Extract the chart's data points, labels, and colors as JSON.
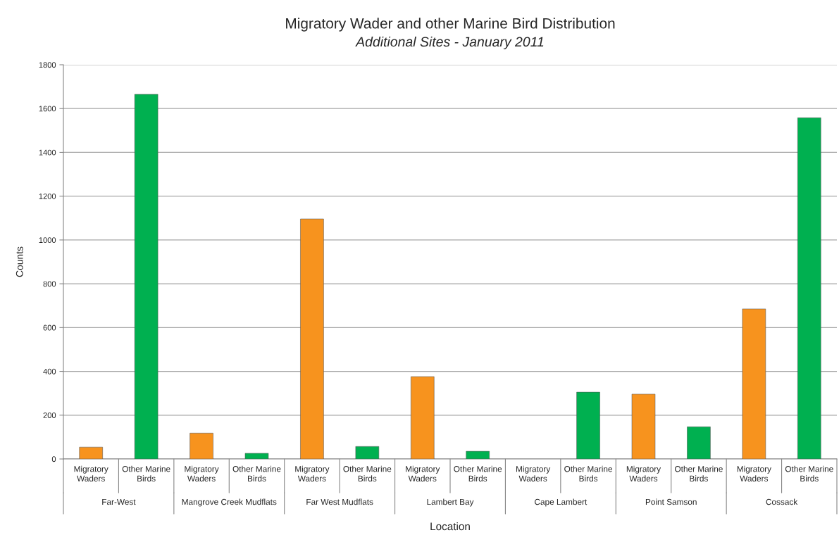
{
  "chart_data": {
    "type": "bar",
    "title": "Migratory Wader and other Marine Bird Distribution",
    "subtitle": "Additional Sites - January 2011",
    "xlabel": "Location",
    "ylabel": "Counts",
    "categories": [
      "Migratory Waders",
      "Other Marine Birds",
      "Migratory Waders",
      "Other Marine Birds",
      "Migratory Waders",
      "Other Marine Birds",
      "Migratory Waders",
      "Other Marine Birds",
      "Migratory Waders",
      "Other Marine Birds",
      "Migratory Waders",
      "Other Marine Birds",
      "Migratory Waders",
      "Other Marine Birds"
    ],
    "values": [
      54,
      1665,
      118,
      26,
      1096,
      57,
      376,
      35,
      null,
      305,
      296,
      147,
      685,
      1558
    ],
    "colors": [
      "#f7931e",
      "#00b050",
      "#f7931e",
      "#00b050",
      "#f7931e",
      "#00b050",
      "#f7931e",
      "#00b050",
      "#f7931e",
      "#00b050",
      "#f7931e",
      "#00b050",
      "#f7931e",
      "#00b050"
    ],
    "annotations": [
      "Far-West",
      "Mangrove Creek Mudflats",
      "Far West Mudflats",
      "Lambert Bay",
      "Cape Lambert",
      "Point Samson",
      "Cossack"
    ],
    "ylim": [
      0,
      1800
    ],
    "yticks": [
      0,
      200,
      400,
      600,
      800,
      1000,
      1200,
      1400,
      1600,
      1800
    ],
    "grid": "y",
    "legend": false
  }
}
